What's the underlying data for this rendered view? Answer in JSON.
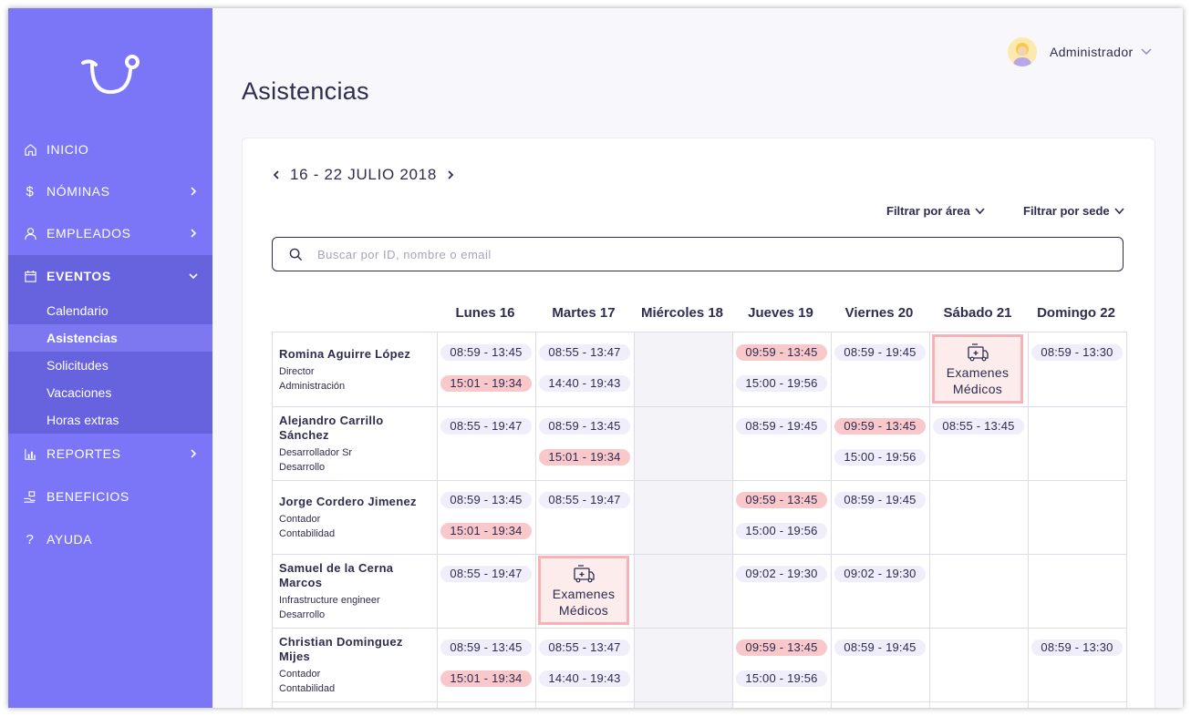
{
  "sidebar": {
    "logo": "logo-icon",
    "items": [
      {
        "label": "INICIO",
        "icon": "home-icon"
      },
      {
        "label": "NÓMINAS",
        "icon": "dollar-icon"
      },
      {
        "label": "EMPLEADOS",
        "icon": "user-icon"
      },
      {
        "label": "EVENTOS",
        "icon": "calendar-icon"
      },
      {
        "label": "REPORTES",
        "icon": "bar-chart-icon"
      },
      {
        "label": "BENEFICIOS",
        "icon": "hand-gift-icon"
      },
      {
        "label": "AYUDA",
        "icon": "question-icon"
      }
    ],
    "sub_items": [
      {
        "label": "Calendario"
      },
      {
        "label": "Asistencias"
      },
      {
        "label": "Solicitudes"
      },
      {
        "label": "Vacaciones"
      },
      {
        "label": "Horas extras"
      }
    ]
  },
  "header": {
    "title": "Asistencias",
    "user_name": "Administrador"
  },
  "week": {
    "label": "16 - 22 JULIO 2018"
  },
  "filters": {
    "area": "Filtrar por área",
    "sede": "Filtrar por sede"
  },
  "search": {
    "placeholder": "Buscar por ID, nombre o email"
  },
  "table": {
    "days": [
      "Lunes 16",
      "Martes 17",
      "Miércoles 18",
      "Jueves 19",
      "Viernes 20",
      "Sábado 21",
      "Domingo 22"
    ],
    "event_label_1": "Examenes",
    "event_label_2": "Médicos",
    "rows": [
      {
        "name": "Romina Aguirre López",
        "role": "Director",
        "dept": "Administración",
        "cells": [
          [
            {
              "t": "08:59 - 13:45",
              "late": false
            },
            {
              "t": "15:01 - 19:34",
              "late": true
            }
          ],
          [
            {
              "t": "08:55 - 13:47",
              "late": false
            },
            {
              "t": "14:40 - 19:43",
              "late": false
            }
          ],
          [],
          [
            {
              "t": "09:59 - 13:45",
              "late": true
            },
            {
              "t": "15:00 - 19:56",
              "late": false
            }
          ],
          [
            {
              "t": "08:59 - 19:45",
              "late": false
            }
          ],
          "event",
          [
            {
              "t": "08:59 - 13:30",
              "late": false
            }
          ]
        ]
      },
      {
        "name": "Alejandro Carrillo Sánchez",
        "role": "Desarrollador Sr",
        "dept": "Desarrollo",
        "cells": [
          [
            {
              "t": "08:55 - 19:47",
              "late": false
            }
          ],
          [
            {
              "t": "08:59 - 13:45",
              "late": false
            },
            {
              "t": "15:01 - 19:34",
              "late": true
            }
          ],
          [],
          [
            {
              "t": "08:59 - 19:45",
              "late": false
            }
          ],
          [
            {
              "t": "09:59 - 13:45",
              "late": true
            },
            {
              "t": "15:00 - 19:56",
              "late": false
            }
          ],
          [
            {
              "t": "08:55 - 13:45",
              "late": false
            }
          ],
          []
        ]
      },
      {
        "name": "Jorge Cordero Jimenez",
        "role": "Contador",
        "dept": "Contabilidad",
        "cells": [
          [
            {
              "t": "08:59 - 13:45",
              "late": false
            },
            {
              "t": "15:01 - 19:34",
              "late": true
            }
          ],
          [
            {
              "t": "08:55 - 19:47",
              "late": false
            }
          ],
          [],
          [
            {
              "t": "09:59 - 13:45",
              "late": true
            },
            {
              "t": "15:00 - 19:56",
              "late": false
            }
          ],
          [
            {
              "t": "08:59 - 19:45",
              "late": false
            }
          ],
          [],
          []
        ]
      },
      {
        "name": "Samuel de la Cerna Marcos",
        "role": "Infrastructure engineer",
        "dept": "Desarrollo",
        "cells": [
          [
            {
              "t": "08:55 - 19:47",
              "late": false
            }
          ],
          "event",
          [],
          [
            {
              "t": "09:02 - 19:30",
              "late": false
            }
          ],
          [
            {
              "t": "09:02 - 19:30",
              "late": false
            }
          ],
          [],
          []
        ]
      },
      {
        "name": "Christian Dominguez Mijes",
        "role": "Contador",
        "dept": "Contabilidad",
        "cells": [
          [
            {
              "t": "08:59 - 13:45",
              "late": false
            },
            {
              "t": "15:01 - 19:34",
              "late": true
            }
          ],
          [
            {
              "t": "08:55 - 13:47",
              "late": false
            },
            {
              "t": "14:40 - 19:43",
              "late": false
            }
          ],
          [],
          [
            {
              "t": "09:59 - 13:45",
              "late": true
            },
            {
              "t": "15:00 - 19:56",
              "late": false
            }
          ],
          [
            {
              "t": "08:59 - 19:45",
              "late": false
            }
          ],
          [],
          [
            {
              "t": "08:59 - 13:30",
              "late": false
            }
          ]
        ]
      }
    ]
  },
  "colors": {
    "sidebar": "#7b76f7",
    "sidebar_active": "#6762dd",
    "pill": "#efeefa",
    "pill_late": "#f9c8ca",
    "event_border": "#f6b3b5"
  }
}
